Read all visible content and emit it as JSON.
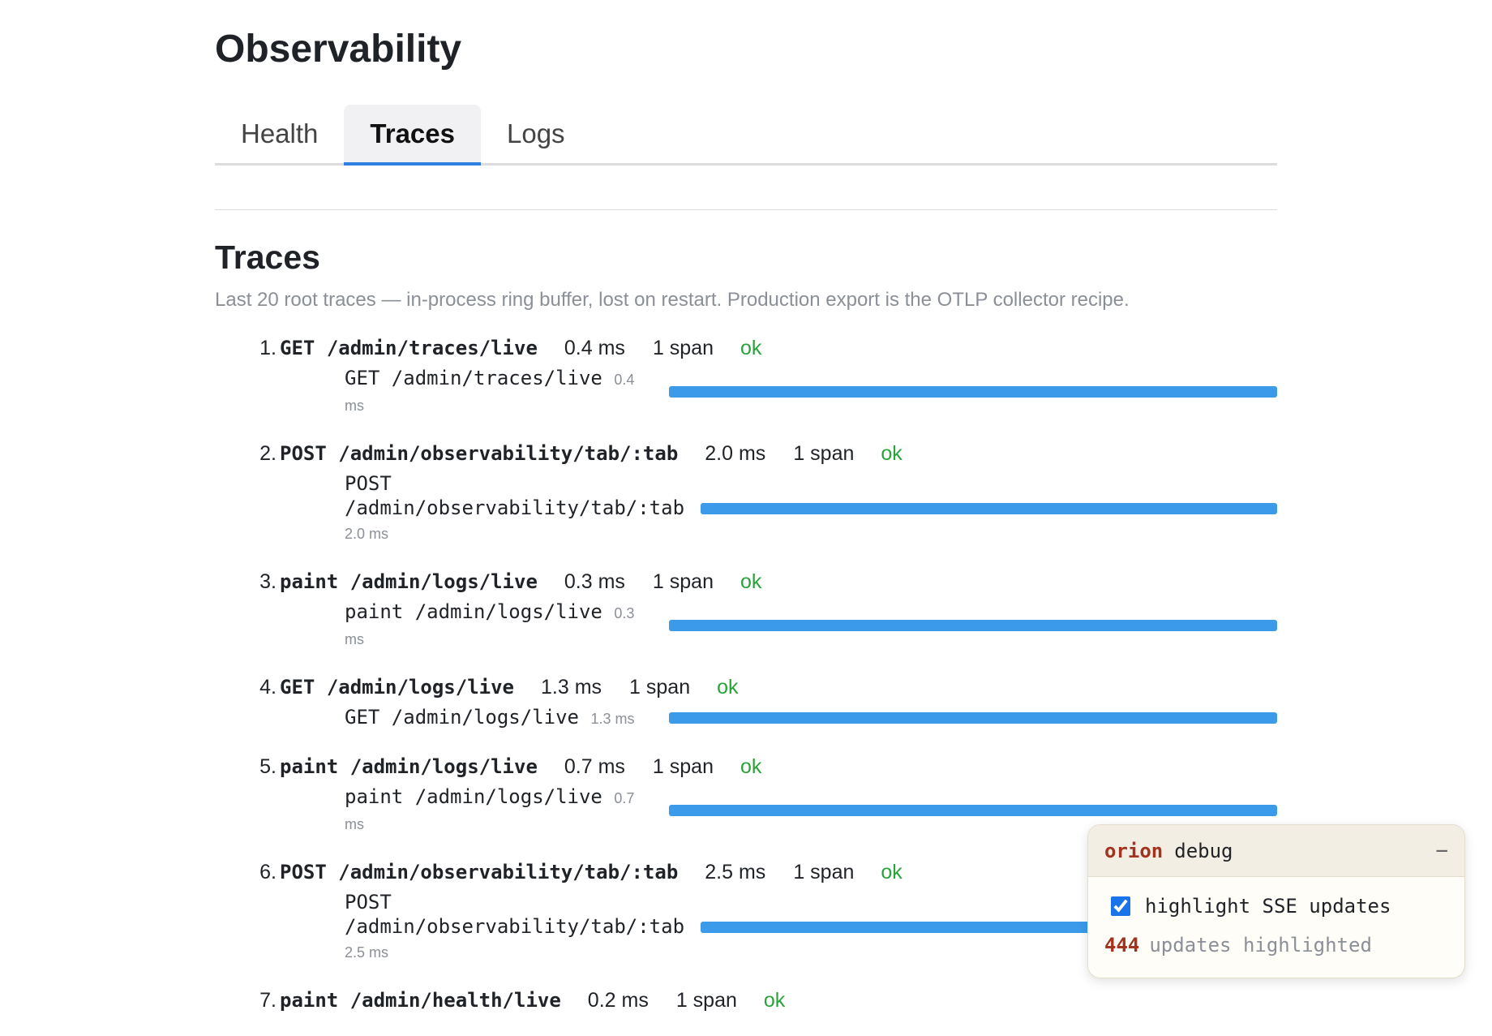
{
  "header": {
    "title": "Observability"
  },
  "tabs": [
    {
      "label": "Health",
      "active": false
    },
    {
      "label": "Traces",
      "active": true
    },
    {
      "label": "Logs",
      "active": false
    }
  ],
  "section": {
    "title": "Traces",
    "description": "Last 20 root traces — in-process ring buffer, lost on restart. Production export is the OTLP collector recipe."
  },
  "traces": [
    {
      "rank": "1.",
      "method": "GET",
      "path": "/admin/traces/live",
      "duration": "0.4 ms",
      "span_count": "1 span",
      "status": "ok",
      "spans": [
        {
          "name": "GET /admin/traces/live",
          "duration": "0.4 ms"
        }
      ]
    },
    {
      "rank": "2.",
      "method": "POST",
      "path": "/admin/observability/tab/:tab",
      "duration": "2.0 ms",
      "span_count": "1 span",
      "status": "ok",
      "spans": [
        {
          "name": "POST /admin/observability/tab/:tab",
          "duration": "2.0 ms"
        }
      ]
    },
    {
      "rank": "3.",
      "method": "paint",
      "path": "/admin/logs/live",
      "duration": "0.3 ms",
      "span_count": "1 span",
      "status": "ok",
      "spans": [
        {
          "name": "paint /admin/logs/live",
          "duration": "0.3 ms"
        }
      ]
    },
    {
      "rank": "4.",
      "method": "GET",
      "path": "/admin/logs/live",
      "duration": "1.3 ms",
      "span_count": "1 span",
      "status": "ok",
      "spans": [
        {
          "name": "GET /admin/logs/live",
          "duration": "1.3 ms"
        }
      ]
    },
    {
      "rank": "5.",
      "method": "paint",
      "path": "/admin/logs/live",
      "duration": "0.7 ms",
      "span_count": "1 span",
      "status": "ok",
      "spans": [
        {
          "name": "paint /admin/logs/live",
          "duration": "0.7 ms"
        }
      ]
    },
    {
      "rank": "6.",
      "method": "POST",
      "path": "/admin/observability/tab/:tab",
      "duration": "2.5 ms",
      "span_count": "1 span",
      "status": "ok",
      "spans": [
        {
          "name": "POST /admin/observability/tab/:tab",
          "duration": "2.5 ms"
        }
      ]
    },
    {
      "rank": "7.",
      "method": "paint",
      "path": "/admin/health/live",
      "duration": "0.2 ms",
      "span_count": "1 span",
      "status": "ok"
    }
  ],
  "debug": {
    "brand": "orion",
    "title": "debug",
    "minimize": "−",
    "highlight_label": "highlight SSE updates",
    "highlight_enabled": true,
    "count": 444,
    "count_label": "updates highlighted"
  }
}
